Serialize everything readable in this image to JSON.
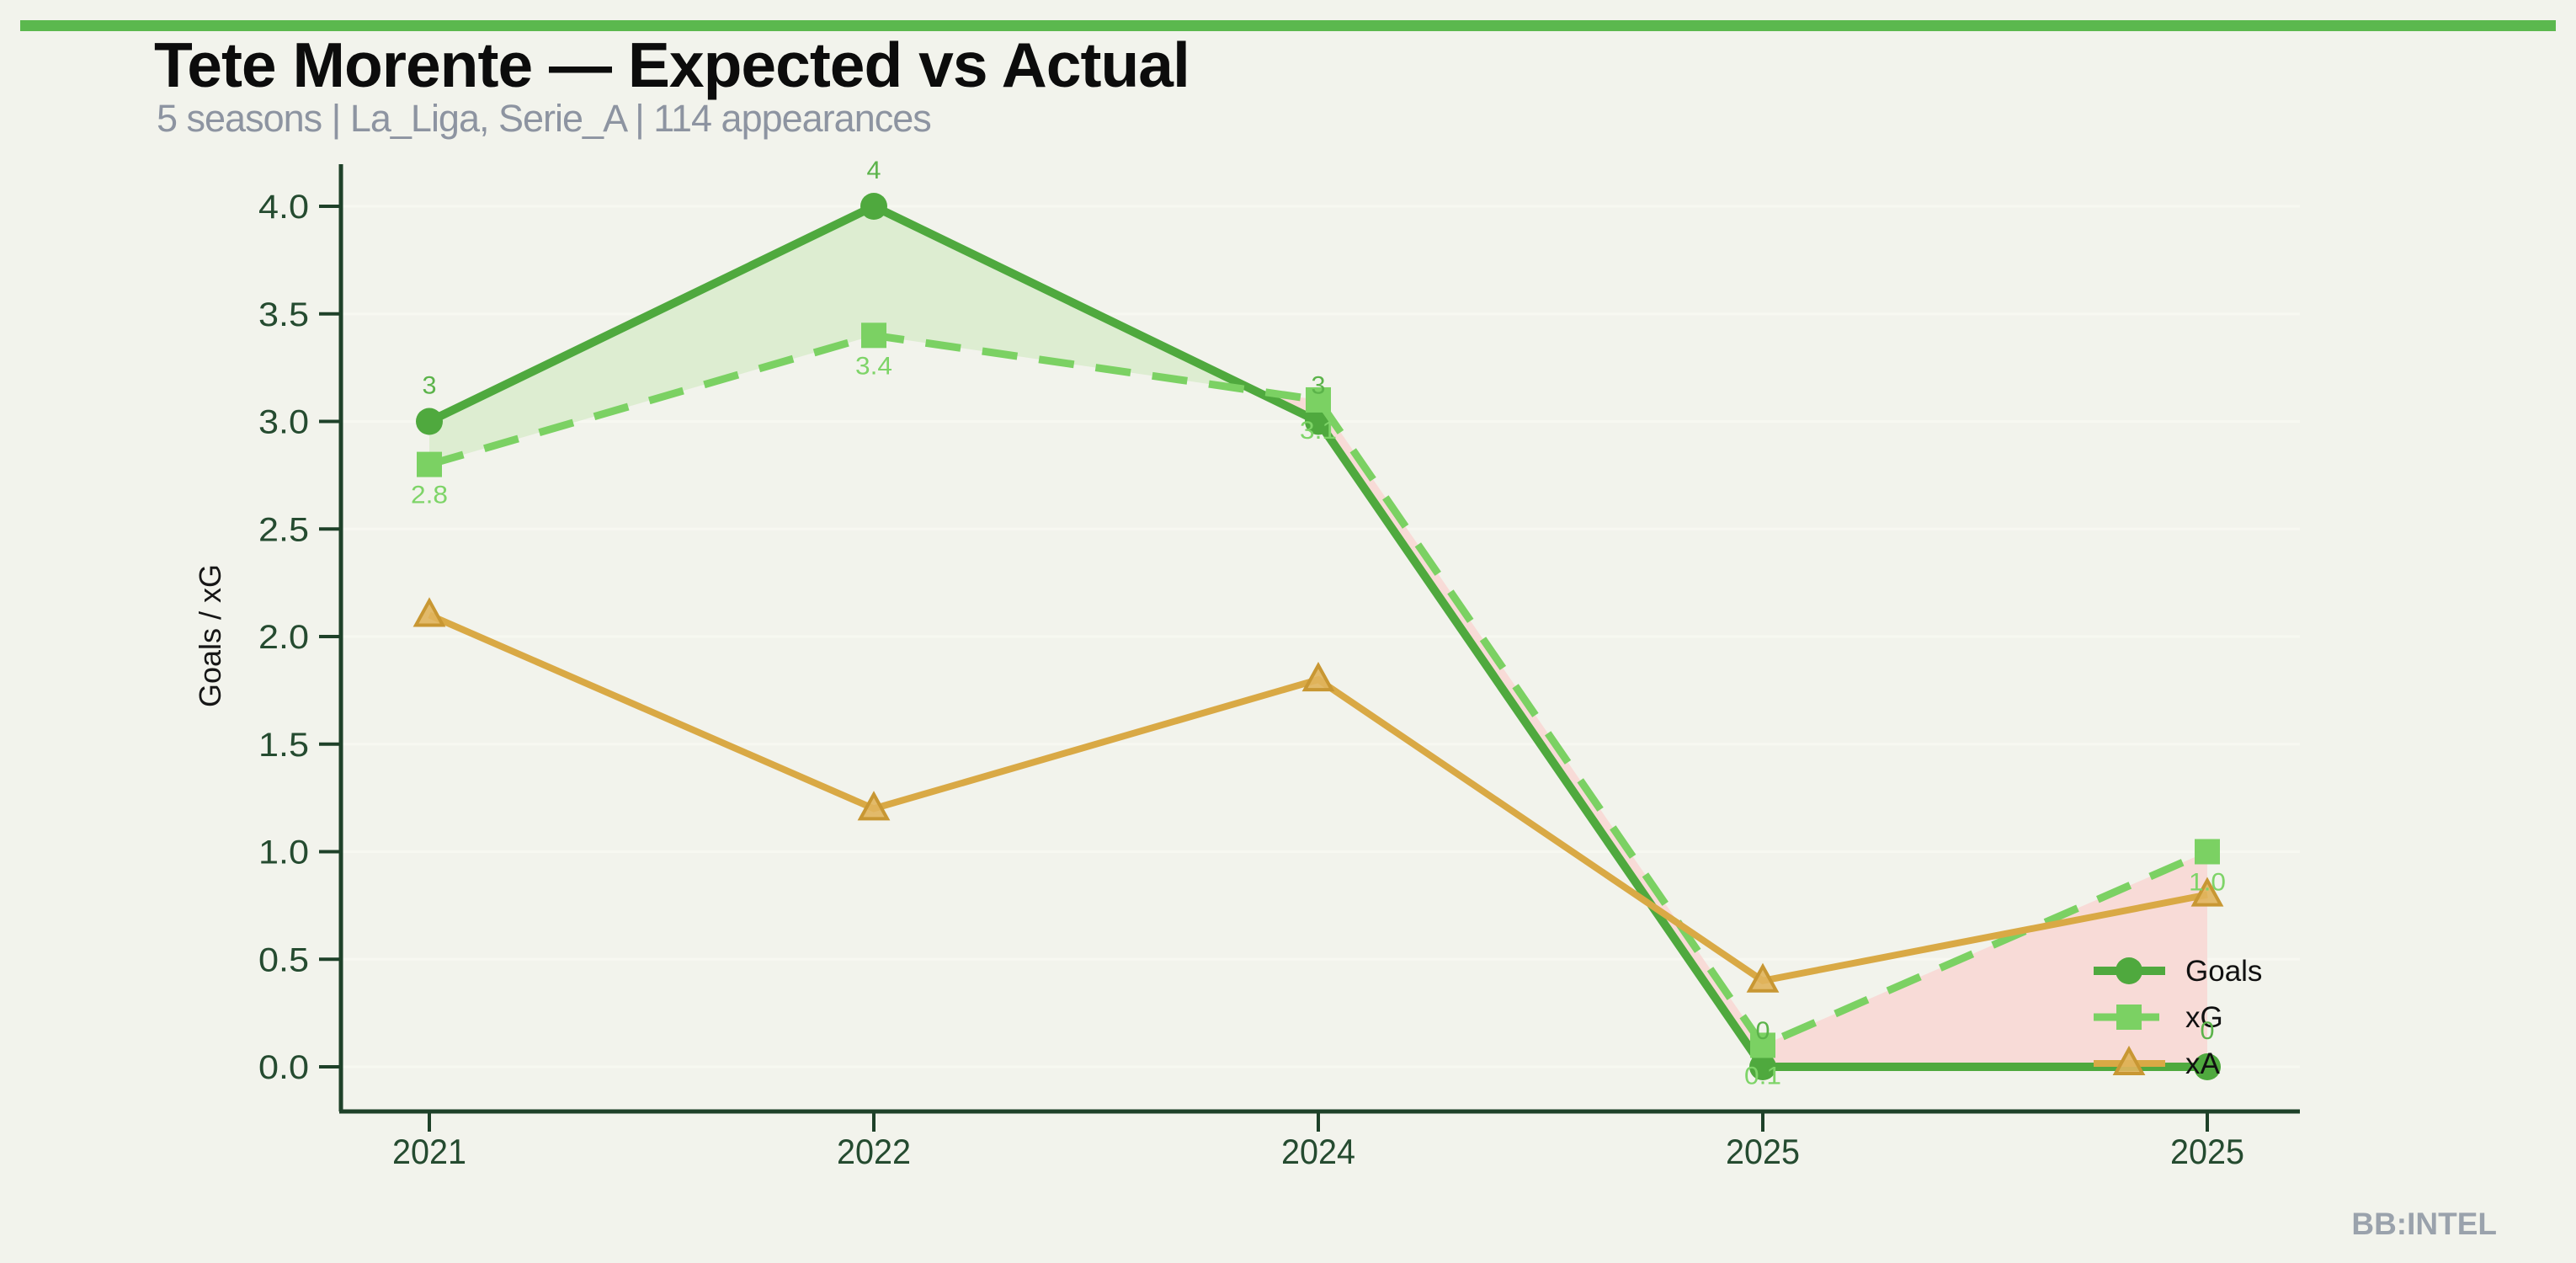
{
  "page": {
    "background_color": "#f2f3ec",
    "top_bar_color": "#5bb84e"
  },
  "header": {
    "title": "Tete Morente — Expected vs Actual",
    "subtitle": "5 seasons | La_Liga, Serie_A | 114 appearances"
  },
  "footer": {
    "brand": "BB:INTEL"
  },
  "chart_data": {
    "type": "line",
    "title": "Tete Morente — Expected vs Actual",
    "subtitle": "5 seasons | La_Liga, Serie_A | 114 appearances",
    "categories": [
      "2021",
      "2022",
      "2024",
      "2025",
      "2025"
    ],
    "xlabel": "",
    "ylabel": "Goals / xG",
    "ylim": [
      0,
      4.2
    ],
    "yticks": [
      "0.0",
      "0.5",
      "1.0",
      "1.5",
      "2.0",
      "2.5",
      "3.0",
      "3.5",
      "4.0"
    ],
    "grid": true,
    "legend_position": "lower right",
    "axis_color": "#1e4129",
    "tick_label_color": "#254b30",
    "gridline_color": "#f7f8f1",
    "series": [
      {
        "name": "Goals",
        "values": [
          3,
          4,
          3,
          0,
          0
        ],
        "point_labels": [
          "3",
          "4",
          "3",
          "0",
          "0"
        ],
        "label_placement": "above",
        "color": "#4fa93e",
        "label_color": "#5bb34a",
        "marker": "circle",
        "line_style": "solid"
      },
      {
        "name": "xG",
        "values": [
          2.8,
          3.4,
          3.1,
          0.1,
          1.0
        ],
        "point_labels": [
          "2.8",
          "3.4",
          "3.1",
          "0.1",
          "1.0"
        ],
        "label_placement": "below",
        "color": "#7bd163",
        "label_color": "#7ed468",
        "marker": "square",
        "line_style": "dashed"
      },
      {
        "name": "xA",
        "values": [
          2.1,
          1.2,
          1.8,
          0.4,
          0.8
        ],
        "point_labels": [],
        "label_placement": "none",
        "color": "#d9a945",
        "marker_fill": "#e0b45c",
        "marker_edge": "#c89733",
        "marker": "triangle",
        "line_style": "solid"
      }
    ],
    "fill_between": {
      "upper_series": "Goals",
      "lower_series": "xG",
      "positive_color": "#ddedd1",
      "negative_color": "#f8dbd7"
    },
    "legend": {
      "items": [
        "Goals",
        "xG",
        "xA"
      ]
    }
  }
}
